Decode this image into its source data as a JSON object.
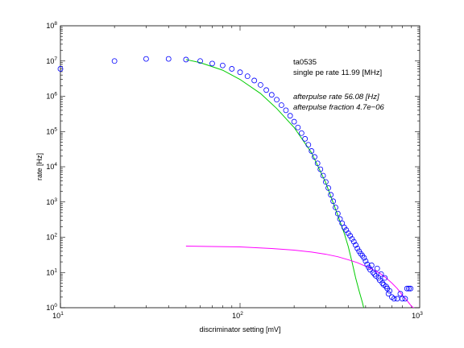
{
  "chart_data": {
    "type": "scatter",
    "title": "",
    "xlabel": "discriminator setting [mV]",
    "ylabel": "rate [Hz]",
    "xscale": "log",
    "yscale": "log",
    "xlim": [
      10,
      1000
    ],
    "ylim": [
      1,
      100000000
    ],
    "grid": false,
    "x_ticks": [
      {
        "base": "10",
        "exp": "1",
        "value": 10
      },
      {
        "base": "10",
        "exp": "2",
        "value": 100
      },
      {
        "base": "10",
        "exp": "3",
        "value": 1000
      }
    ],
    "y_ticks": [
      {
        "base": "10",
        "exp": "0",
        "value": 1
      },
      {
        "base": "10",
        "exp": "1",
        "value": 10
      },
      {
        "base": "10",
        "exp": "2",
        "value": 100
      },
      {
        "base": "10",
        "exp": "3",
        "value": 1000
      },
      {
        "base": "10",
        "exp": "4",
        "value": 10000
      },
      {
        "base": "10",
        "exp": "5",
        "value": 100000
      },
      {
        "base": "10",
        "exp": "6",
        "value": 1000000
      },
      {
        "base": "10",
        "exp": "7",
        "value": 10000000
      },
      {
        "base": "10",
        "exp": "8",
        "value": 100000000
      }
    ],
    "series": [
      {
        "type": "scatter",
        "marker": "circle-open",
        "color": "#0000ff",
        "points": [
          [
            10,
            6000000
          ],
          [
            20,
            10000000
          ],
          [
            30,
            11500000
          ],
          [
            40,
            11500000
          ],
          [
            50,
            11000000
          ],
          [
            60,
            10000000
          ],
          [
            70,
            8500000
          ],
          [
            80,
            7500000
          ],
          [
            90,
            6000000
          ],
          [
            100,
            4800000
          ],
          [
            110,
            3700000
          ],
          [
            120,
            2800000
          ],
          [
            130,
            2100000
          ],
          [
            140,
            1500000
          ],
          [
            150,
            1100000
          ],
          [
            160,
            800000
          ],
          [
            170,
            560000
          ],
          [
            180,
            400000
          ],
          [
            190,
            280000
          ],
          [
            200,
            190000
          ],
          [
            210,
            130000
          ],
          [
            220,
            90000
          ],
          [
            230,
            62000
          ],
          [
            240,
            42000
          ],
          [
            250,
            28000
          ],
          [
            260,
            19000
          ],
          [
            270,
            12500
          ],
          [
            280,
            8500
          ],
          [
            290,
            5600
          ],
          [
            300,
            3700
          ],
          [
            310,
            2500
          ],
          [
            320,
            1600
          ],
          [
            330,
            1050
          ],
          [
            340,
            700
          ],
          [
            350,
            470
          ],
          [
            360,
            330
          ],
          [
            370,
            250
          ],
          [
            380,
            190
          ],
          [
            390,
            160
          ],
          [
            400,
            130
          ],
          [
            410,
            110
          ],
          [
            420,
            90
          ],
          [
            430,
            75
          ],
          [
            440,
            60
          ],
          [
            450,
            48
          ],
          [
            460,
            40
          ],
          [
            470,
            34
          ],
          [
            480,
            30
          ],
          [
            490,
            26
          ],
          [
            500,
            21
          ],
          [
            510,
            17
          ],
          [
            520,
            14
          ],
          [
            530,
            12
          ],
          [
            540,
            16
          ],
          [
            550,
            10
          ],
          [
            560,
            9
          ],
          [
            570,
            8
          ],
          [
            580,
            13
          ],
          [
            590,
            7
          ],
          [
            600,
            6
          ],
          [
            610,
            9
          ],
          [
            620,
            5
          ],
          [
            630,
            4.5
          ],
          [
            640,
            7
          ],
          [
            650,
            4
          ],
          [
            660,
            3.5
          ],
          [
            670,
            2.5
          ],
          [
            680,
            3
          ],
          [
            700,
            2
          ],
          [
            720,
            1.8
          ],
          [
            750,
            1.8
          ],
          [
            780,
            2.5
          ],
          [
            800,
            1.8
          ],
          [
            830,
            1.8
          ],
          [
            850,
            3.5
          ],
          [
            870,
            3.5
          ],
          [
            890,
            3.5
          ]
        ]
      },
      {
        "type": "line",
        "color": "#00cc00",
        "points": [
          [
            50,
            11000000
          ],
          [
            60,
            9000000
          ],
          [
            80,
            5500000
          ],
          [
            100,
            3000000
          ],
          [
            130,
            1200000
          ],
          [
            160,
            450000
          ],
          [
            200,
            130000
          ],
          [
            250,
            25000
          ],
          [
            300,
            3500
          ],
          [
            350,
            420
          ],
          [
            380,
            130
          ],
          [
            400,
            55
          ],
          [
            420,
            20
          ],
          [
            440,
            7
          ],
          [
            460,
            3
          ],
          [
            480,
            1.4
          ],
          [
            500,
            0.6
          ]
        ]
      },
      {
        "type": "line",
        "color": "#ff00ff",
        "points": [
          [
            50,
            56
          ],
          [
            100,
            53
          ],
          [
            150,
            48
          ],
          [
            200,
            43
          ],
          [
            250,
            38
          ],
          [
            300,
            33
          ],
          [
            350,
            28
          ],
          [
            400,
            23
          ],
          [
            450,
            19
          ],
          [
            500,
            15
          ],
          [
            550,
            12
          ],
          [
            600,
            9.5
          ],
          [
            650,
            7
          ],
          [
            700,
            5
          ],
          [
            750,
            3.5
          ],
          [
            800,
            2.3
          ],
          [
            850,
            1.6
          ],
          [
            900,
            1.1
          ],
          [
            950,
            0.9
          ]
        ]
      }
    ],
    "annotations": [
      {
        "text": "ta0535",
        "style": "normal"
      },
      {
        "text": "single pe rate 11.99 [MHz]",
        "style": "normal"
      },
      {
        "text": "afterpulse rate 56.08 [Hz]",
        "style": "italic"
      },
      {
        "text": "afterpulse fraction 4.7e−06",
        "style": "italic"
      }
    ]
  }
}
